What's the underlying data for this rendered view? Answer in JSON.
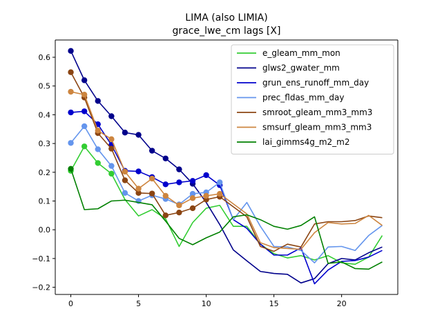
{
  "chart_data": {
    "type": "line",
    "title": "LIMA (also LIMIA)",
    "subtitle": "grace_lwe_cm lags [X]",
    "xlabel": "",
    "ylabel": "",
    "xlim": [
      -1.15,
      24.15
    ],
    "ylim": [
      -0.225,
      0.66
    ],
    "xticks": [
      0,
      5,
      10,
      15,
      20
    ],
    "yticks": [
      -0.2,
      -0.1,
      0.0,
      0.1,
      0.2,
      0.3,
      0.4,
      0.5,
      0.6
    ],
    "ytick_labels": [
      "−0.2",
      "−0.1",
      "0.0",
      "0.1",
      "0.2",
      "0.3",
      "0.4",
      "0.5",
      "0.6"
    ],
    "grid": false,
    "legend_position": "upper right",
    "x": [
      0,
      1,
      2,
      3,
      4,
      5,
      6,
      7,
      8,
      9,
      10,
      11,
      12,
      13,
      14,
      15,
      16,
      17,
      18,
      19,
      20,
      21,
      22,
      23
    ],
    "series": [
      {
        "name": "e_gleam_mm_mon",
        "color": "#32cd32",
        "values": [
          0.205,
          0.29,
          0.232,
          0.195,
          0.105,
          0.048,
          0.07,
          0.038,
          -0.058,
          0.025,
          0.075,
          0.085,
          0.012,
          0.012,
          -0.05,
          -0.083,
          -0.098,
          -0.09,
          -0.105,
          -0.09,
          -0.115,
          -0.12,
          -0.095,
          -0.02
        ],
        "markers": [
          0,
          1,
          2,
          3
        ]
      },
      {
        "name": "glws2_gwater_mm",
        "color": "#00008b",
        "values": [
          0.622,
          0.52,
          0.448,
          0.395,
          0.338,
          0.33,
          0.275,
          0.248,
          0.21,
          0.16,
          0.095,
          0.018,
          -0.07,
          -0.108,
          -0.145,
          -0.152,
          -0.155,
          -0.185,
          -0.17,
          -0.118,
          -0.1,
          -0.105,
          -0.08,
          -0.06
        ],
        "markers": [
          0,
          1,
          2,
          3,
          4,
          5,
          6,
          7,
          8,
          9
        ]
      },
      {
        "name": "grun_ens_runoff_mm_day",
        "color": "#0000cd",
        "values": [
          0.408,
          0.412,
          0.367,
          0.295,
          0.205,
          0.203,
          0.183,
          0.158,
          0.165,
          0.17,
          0.19,
          0.155,
          0.035,
          0.005,
          -0.05,
          -0.088,
          -0.088,
          -0.063,
          -0.188,
          -0.14,
          -0.11,
          -0.107,
          -0.095,
          -0.072
        ],
        "markers": [
          0,
          1,
          2,
          3,
          4,
          5,
          6,
          7,
          8,
          9,
          10,
          11
        ]
      },
      {
        "name": "prec_fldas_mm_day",
        "color": "#6495ed",
        "values": [
          0.302,
          0.36,
          0.28,
          0.222,
          0.128,
          0.1,
          0.12,
          0.107,
          0.088,
          0.125,
          0.13,
          0.165,
          0.035,
          0.095,
          0.012,
          -0.058,
          -0.06,
          -0.072,
          -0.115,
          -0.06,
          -0.058,
          -0.072,
          -0.02,
          0.015
        ],
        "markers": [
          0,
          1,
          2,
          3,
          4,
          5,
          6,
          7,
          8,
          9,
          10,
          11
        ]
      },
      {
        "name": "smroot_gleam_mm3_mm3",
        "color": "#8b4513",
        "values": [
          0.548,
          0.46,
          0.336,
          0.282,
          0.172,
          0.128,
          0.126,
          0.05,
          0.06,
          0.075,
          0.105,
          0.115,
          0.08,
          0.045,
          -0.058,
          -0.075,
          -0.05,
          -0.06,
          0.02,
          0.028,
          0.028,
          0.032,
          0.048,
          0.042
        ],
        "markers": [
          0,
          1,
          2,
          3,
          4,
          5,
          6,
          7,
          8,
          9,
          10,
          11
        ]
      },
      {
        "name": "smsurf_gleam_mm3_mm3",
        "color": "#cd853f",
        "values": [
          0.48,
          0.47,
          0.345,
          0.315,
          0.202,
          0.143,
          0.178,
          0.118,
          0.085,
          0.11,
          0.118,
          0.125,
          0.09,
          0.055,
          -0.045,
          -0.062,
          -0.065,
          -0.068,
          -0.01,
          0.025,
          0.02,
          0.022,
          0.05,
          0.015
        ],
        "markers": [
          0,
          1,
          2,
          3,
          4,
          5,
          6,
          7,
          8,
          9,
          10,
          11
        ]
      },
      {
        "name": "lai_gimms4g_m2_m2",
        "color": "#008000",
        "values": [
          0.212,
          0.07,
          0.073,
          0.1,
          0.103,
          0.095,
          0.087,
          0.03,
          -0.03,
          -0.052,
          -0.028,
          -0.008,
          0.045,
          0.052,
          0.035,
          0.012,
          0.002,
          0.015,
          0.045,
          -0.117,
          -0.112,
          -0.135,
          -0.137,
          -0.112
        ],
        "markers": [
          0
        ]
      }
    ]
  }
}
